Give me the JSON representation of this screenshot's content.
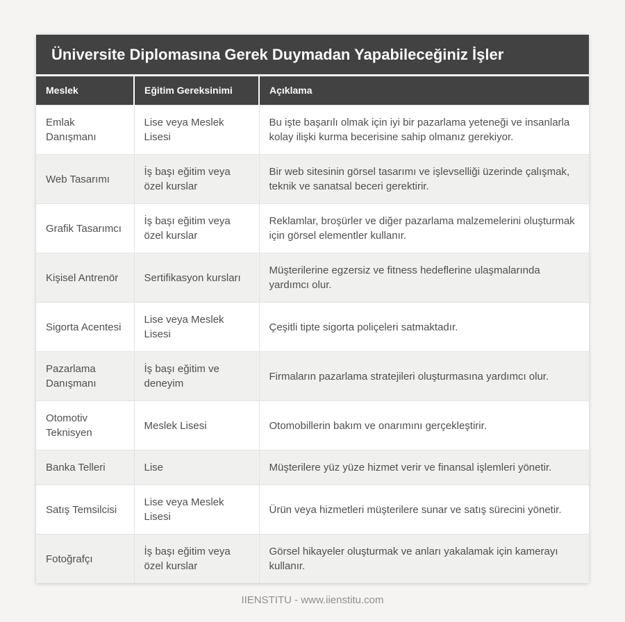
{
  "footer": "IIENSTITU - www.iienstitu.com",
  "colors": {
    "page_bg": "#f5f4f2",
    "header_bg": "#424242",
    "header_text": "#fafafa",
    "row_bg": "#ffffff",
    "row_alt_bg": "#f0f0ef",
    "cell_text": "#4f4f4f",
    "border": "#e3e3e3",
    "footer_text": "#8f8f8f"
  },
  "chart_data": {
    "type": "table",
    "title": "Üniversite Diplomasına Gerek Duymadan Yapabileceğiniz İşler",
    "columns": [
      "Meslek",
      "Eğitim Gereksinimi",
      "Açıklama"
    ],
    "rows": [
      [
        "Emlak Danışmanı",
        "Lise veya Meslek Lisesi",
        "Bu işte başarılı olmak için iyi bir pazarlama yeteneği ve insanlarla kolay ilişki kurma becerisine sahip olmanız gerekiyor."
      ],
      [
        "Web Tasarımı",
        "İş başı eğitim veya özel kurslar",
        "Bir web sitesinin görsel tasarımı ve işlevselliği üzerinde çalışmak, teknik ve sanatsal beceri gerektirir."
      ],
      [
        "Grafik Tasarımcı",
        "İş başı eğitim veya özel kurslar",
        "Reklamlar, broşürler ve diğer pazarlama malzemelerini oluşturmak için görsel elementler kullanır."
      ],
      [
        "Kişisel Antrenör",
        "Sertifikasyon kursları",
        "Müşterilerine egzersiz ve fitness hedeflerine ulaşmalarında yardımcı olur."
      ],
      [
        "Sigorta Acentesi",
        "Lise veya Meslek Lisesi",
        "Çeşitli tipte sigorta poliçeleri satmaktadır."
      ],
      [
        "Pazarlama Danışmanı",
        "İş başı eğitim ve deneyim",
        "Firmaların pazarlama stratejileri oluşturmasına yardımcı olur."
      ],
      [
        "Otomotiv Teknisyen",
        "Meslek Lisesi",
        "Otomobillerin bakım ve onarımını gerçekleştirir."
      ],
      [
        "Banka Telleri",
        "Lise",
        "Müşterilere yüz yüze hizmet verir ve finansal işlemleri yönetir."
      ],
      [
        "Satış Temsilcisi",
        "Lise veya Meslek Lisesi",
        "Ürün veya hizmetleri müşterilere sunar ve satış sürecini yönetir."
      ],
      [
        "Fotoğrafçı",
        "İş başı eğitim veya özel kurslar",
        "Görsel hikayeler oluşturmak ve anları yakalamak için kamerayı kullanır."
      ]
    ]
  }
}
